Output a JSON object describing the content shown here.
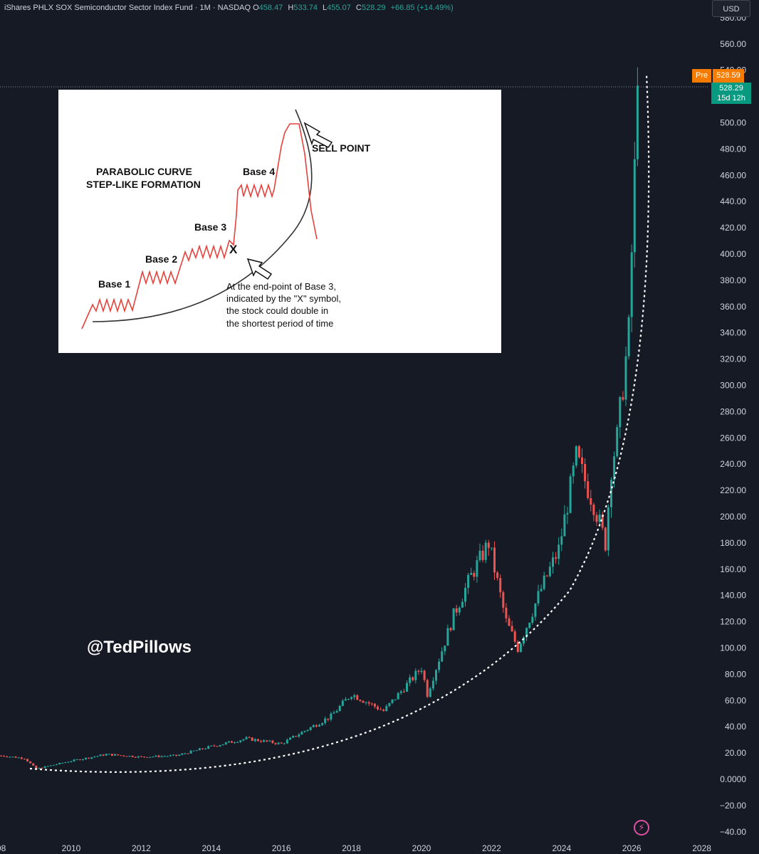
{
  "legend": {
    "title": "iShares PHLX SOX Semiconductor Sector Index Fund · 1M · NASDAQ",
    "open_label": "O",
    "open_value": "458.47",
    "high_label": "H",
    "high_value": "533.74",
    "low_label": "L",
    "low_value": "455.07",
    "close_label": "C",
    "close_value": "528.29",
    "change": "+66.85 (+14.49%)"
  },
  "currency_button": "USD",
  "premarket": {
    "tag": "Pre",
    "price": "528.59"
  },
  "last_price": {
    "price": "528.29",
    "countdown": "15d 12h"
  },
  "watermark": "@TedPillows",
  "colors": {
    "background": "#161a25",
    "up": "#26a69a",
    "down": "#ef5350",
    "text": "#d1d4dc",
    "premarket": "#f57c00"
  },
  "chart_data": {
    "type": "candlestick",
    "y_ticks": [
      "580.00",
      "560.00",
      "540.00",
      "520.00",
      "500.00",
      "480.00",
      "460.00",
      "440.00",
      "420.00",
      "400.00",
      "380.00",
      "360.00",
      "340.00",
      "320.00",
      "300.00",
      "280.00",
      "260.00",
      "240.00",
      "220.00",
      "200.00",
      "180.00",
      "160.00",
      "140.00",
      "120.00",
      "100.00",
      "80.00",
      "60.00",
      "40.00",
      "20.00",
      "0.0000",
      "−20.00",
      "−40.00"
    ],
    "x_ticks": [
      "08",
      "2010",
      "2012",
      "2014",
      "2016",
      "2018",
      "2020",
      "2022",
      "2024",
      "2026",
      "2028"
    ],
    "ylim": [
      -40,
      580
    ],
    "approx_monthly_close": [
      {
        "date": "2008-01",
        "close": 18
      },
      {
        "date": "2008-09",
        "close": 16
      },
      {
        "date": "2009-01",
        "close": 8
      },
      {
        "date": "2010-01",
        "close": 14
      },
      {
        "date": "2011-01",
        "close": 19
      },
      {
        "date": "2012-01",
        "close": 17
      },
      {
        "date": "2013-01",
        "close": 18
      },
      {
        "date": "2014-01",
        "close": 25
      },
      {
        "date": "2015-01",
        "close": 31
      },
      {
        "date": "2016-01",
        "close": 27
      },
      {
        "date": "2016-09",
        "close": 37
      },
      {
        "date": "2017-06",
        "close": 48
      },
      {
        "date": "2018-01",
        "close": 65
      },
      {
        "date": "2018-12",
        "close": 52
      },
      {
        "date": "2019-06",
        "close": 67
      },
      {
        "date": "2020-01",
        "close": 85
      },
      {
        "date": "2020-03",
        "close": 65
      },
      {
        "date": "2020-12",
        "close": 125
      },
      {
        "date": "2021-06",
        "close": 155
      },
      {
        "date": "2021-12",
        "close": 180
      },
      {
        "date": "2022-06",
        "close": 120
      },
      {
        "date": "2022-10",
        "close": 100
      },
      {
        "date": "2023-06",
        "close": 145
      },
      {
        "date": "2023-12",
        "close": 175
      },
      {
        "date": "2024-06",
        "close": 245
      },
      {
        "date": "2024-12",
        "close": 210
      },
      {
        "date": "2025-04",
        "close": 180
      },
      {
        "date": "2025-06",
        "close": 238
      },
      {
        "date": "2025-08",
        "close": 260
      },
      {
        "date": "2025-10",
        "close": 300
      },
      {
        "date": "2025-12",
        "close": 340
      },
      {
        "date": "2026-02",
        "close": 462
      },
      {
        "date": "2026-03",
        "close": 528.29
      }
    ]
  },
  "inset": {
    "title_line1": "PARABOLIC CURVE",
    "title_line2": "STEP-LIKE FORMATION",
    "base1": "Base 1",
    "base2": "Base 2",
    "base3": "Base 3",
    "base4": "Base 4",
    "x_mark": "X",
    "sell_point": "SELL POINT",
    "note_line1": "At the end-point of Base 3,",
    "note_line2": "indicated by the \"X\" symbol,",
    "note_line3": "the stock could double in",
    "note_line4": "the shortest period of time"
  }
}
